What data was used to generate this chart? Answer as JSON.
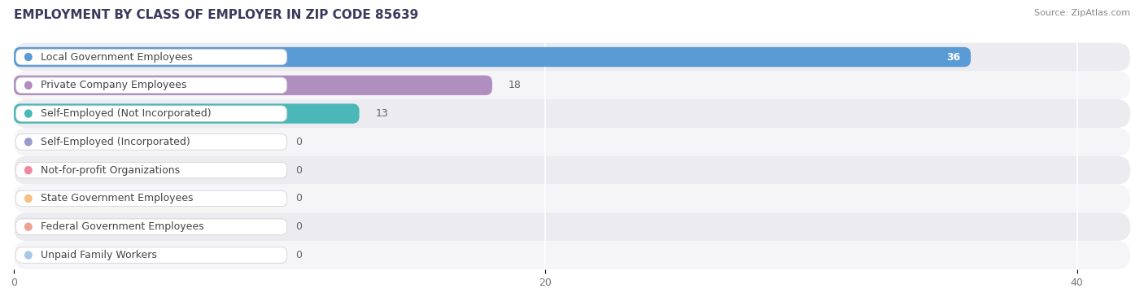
{
  "title": "EMPLOYMENT BY CLASS OF EMPLOYER IN ZIP CODE 85639",
  "source": "Source: ZipAtlas.com",
  "categories": [
    "Local Government Employees",
    "Private Company Employees",
    "Self-Employed (Not Incorporated)",
    "Self-Employed (Incorporated)",
    "Not-for-profit Organizations",
    "State Government Employees",
    "Federal Government Employees",
    "Unpaid Family Workers"
  ],
  "values": [
    36,
    18,
    13,
    0,
    0,
    0,
    0,
    0
  ],
  "bar_colors": [
    "#5b9bd5",
    "#b08ec0",
    "#4ab8b8",
    "#9999cc",
    "#f088a0",
    "#f5c080",
    "#f0a090",
    "#a8c8e8"
  ],
  "dot_colors": [
    "#5b9bd5",
    "#b08ec0",
    "#4ab8b8",
    "#9999cc",
    "#f088a0",
    "#f5c080",
    "#f0a090",
    "#a8c8e8"
  ],
  "row_bg_colors": [
    "#ebebf0",
    "#f5f5f8"
  ],
  "xlim": [
    0,
    42
  ],
  "xticks": [
    0,
    20,
    40
  ],
  "bar_height": 0.7,
  "background_color": "#ffffff",
  "title_fontsize": 11,
  "source_fontsize": 8,
  "label_fontsize": 9,
  "value_fontsize": 9,
  "title_color": "#3a3a5c",
  "source_color": "#888888",
  "label_color": "#444444",
  "value_color_inside": "#ffffff",
  "value_color_outside": "#666666"
}
